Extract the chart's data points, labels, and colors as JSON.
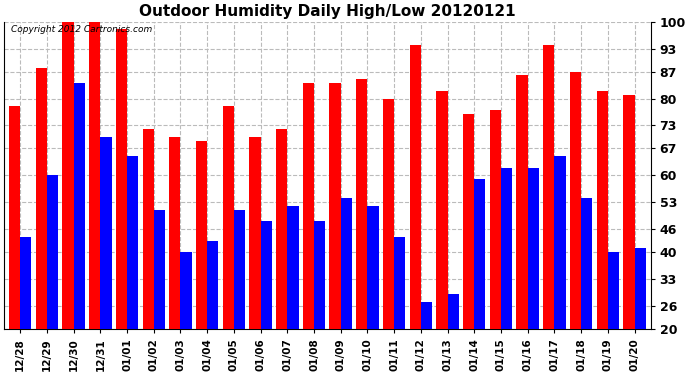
{
  "title": "Outdoor Humidity Daily High/Low 20120121",
  "copyright": "Copyright 2012 Cartronics.com",
  "categories": [
    "12/28",
    "12/29",
    "12/30",
    "12/31",
    "01/01",
    "01/02",
    "01/03",
    "01/04",
    "01/05",
    "01/06",
    "01/07",
    "01/08",
    "01/09",
    "01/10",
    "01/11",
    "01/12",
    "01/13",
    "01/14",
    "01/15",
    "01/16",
    "01/17",
    "01/18",
    "01/19",
    "01/20"
  ],
  "high_values": [
    78,
    88,
    100,
    100,
    98,
    72,
    70,
    69,
    78,
    70,
    72,
    84,
    84,
    85,
    80,
    94,
    82,
    76,
    77,
    86,
    94,
    87,
    82,
    81
  ],
  "low_values": [
    44,
    60,
    84,
    70,
    65,
    51,
    40,
    43,
    51,
    48,
    52,
    48,
    54,
    52,
    44,
    27,
    29,
    59,
    62,
    62,
    65,
    54,
    40,
    41
  ],
  "high_color": "#ff0000",
  "low_color": "#0000ff",
  "bg_color": "#ffffff",
  "plot_bg_color": "#ffffff",
  "grid_color": "#bbbbbb",
  "yticks": [
    20,
    26,
    33,
    40,
    46,
    53,
    60,
    67,
    73,
    80,
    87,
    93,
    100
  ],
  "ymin": 20,
  "ymax": 100,
  "title_fontsize": 11,
  "copyright_fontsize": 6.5,
  "bar_width": 0.42
}
